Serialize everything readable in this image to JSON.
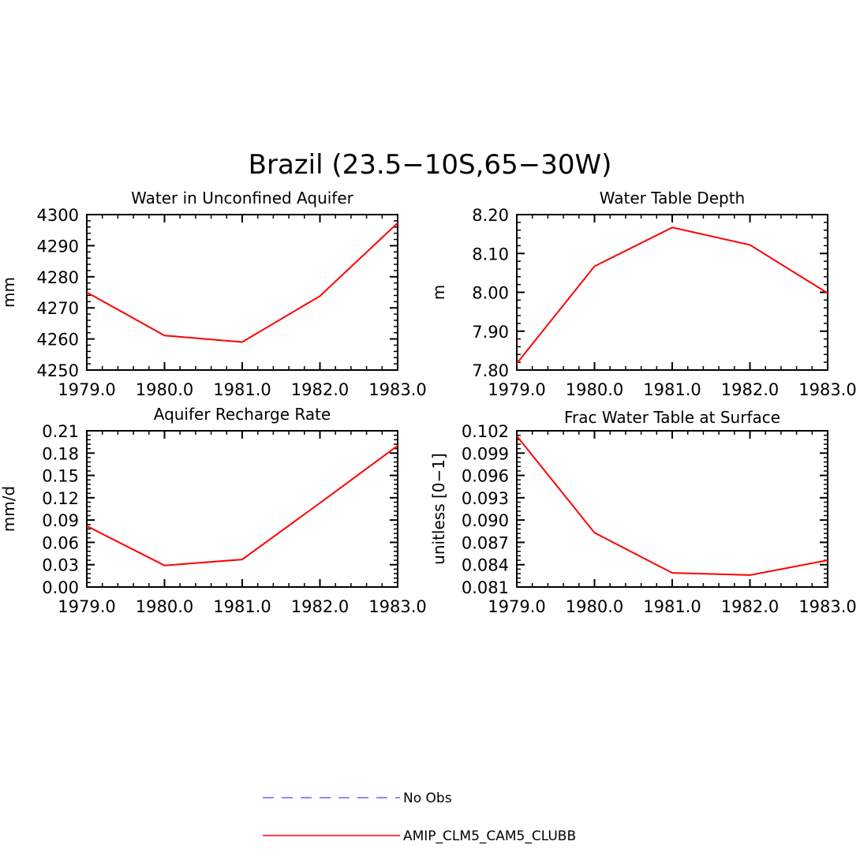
{
  "figure_title": "Brazil (23.5−10S,65−30W)",
  "colors": {
    "model": "#ff0000",
    "obs": "#6666ff",
    "axis": "#000000"
  },
  "legend": {
    "items": [
      {
        "label": "No Obs",
        "style": "dashed",
        "color": "#6666ff"
      },
      {
        "label": "AMIP_CLM5_CAM5_CLUBB",
        "style": "solid",
        "color": "#ff0000"
      }
    ]
  },
  "chart_data": [
    {
      "type": "line",
      "title": "Water in Unconfined Aquifer",
      "ylabel": "mm",
      "xlabel": "",
      "x": [
        1979,
        1980,
        1981,
        1982,
        1983
      ],
      "xticks": [
        "1979.0",
        "1980.0",
        "1981.0",
        "1982.0",
        "1983.0"
      ],
      "yticks": [
        "4250",
        "4260",
        "4270",
        "4280",
        "4290",
        "4300"
      ],
      "xlim": [
        1979,
        1983
      ],
      "ylim": [
        4250,
        4300
      ],
      "series": [
        {
          "name": "AMIP_CLM5_CAM5_CLUBB",
          "values": [
            4275.0,
            4261.1,
            4259.0,
            4273.8,
            4297.3
          ]
        }
      ]
    },
    {
      "type": "line",
      "title": "Water Table Depth",
      "ylabel": "m",
      "xlabel": "",
      "x": [
        1979,
        1980,
        1981,
        1982,
        1983
      ],
      "xticks": [
        "1979.0",
        "1980.0",
        "1981.0",
        "1982.0",
        "1983.0"
      ],
      "yticks": [
        "7.80",
        "7.90",
        "8.00",
        "8.10",
        "8.20"
      ],
      "xlim": [
        1979,
        1983
      ],
      "ylim": [
        7.8,
        8.2
      ],
      "series": [
        {
          "name": "AMIP_CLM5_CAM5_CLUBB",
          "values": [
            7.817,
            8.067,
            8.167,
            8.122,
            7.998
          ]
        }
      ]
    },
    {
      "type": "line",
      "title": "Aquifer Recharge Rate",
      "ylabel": "mm/d",
      "xlabel": "",
      "x": [
        1979,
        1980,
        1981,
        1982,
        1983
      ],
      "xticks": [
        "1979.0",
        "1980.0",
        "1981.0",
        "1982.0",
        "1983.0"
      ],
      "yticks": [
        "0.00",
        "0.03",
        "0.06",
        "0.09",
        "0.12",
        "0.15",
        "0.18",
        "0.21"
      ],
      "xlim": [
        1979,
        1983
      ],
      "ylim": [
        0,
        0.21
      ],
      "series": [
        {
          "name": "AMIP_CLM5_CAM5_CLUBB",
          "values": [
            0.082,
            0.029,
            0.037,
            0.113,
            0.19
          ]
        }
      ]
    },
    {
      "type": "line",
      "title": "Frac Water Table at Surface",
      "ylabel": "unitless [0−1]",
      "xlabel": "",
      "x": [
        1979,
        1980,
        1981,
        1982,
        1983
      ],
      "xticks": [
        "1979.0",
        "1980.0",
        "1981.0",
        "1982.0",
        "1983.0"
      ],
      "yticks": [
        "0.081",
        "0.084",
        "0.087",
        "0.090",
        "0.093",
        "0.096",
        "0.099",
        "0.102"
      ],
      "xlim": [
        1979,
        1983
      ],
      "ylim": [
        0.081,
        0.102
      ],
      "series": [
        {
          "name": "AMIP_CLM5_CAM5_CLUBB",
          "values": [
            0.1013,
            0.0883,
            0.0829,
            0.0826,
            0.0846
          ]
        }
      ]
    }
  ]
}
